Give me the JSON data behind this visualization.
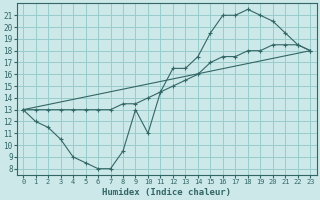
{
  "xlabel": "Humidex (Indice chaleur)",
  "bg_color": "#cce8e8",
  "grid_color": "#99cccc",
  "line_color": "#336666",
  "xlim": [
    -0.5,
    23.5
  ],
  "ylim": [
    7.5,
    22.0
  ],
  "xticks": [
    0,
    1,
    2,
    3,
    4,
    5,
    6,
    7,
    8,
    9,
    10,
    11,
    12,
    13,
    14,
    15,
    16,
    17,
    18,
    19,
    20,
    21,
    22,
    23
  ],
  "yticks": [
    8,
    9,
    10,
    11,
    12,
    13,
    14,
    15,
    16,
    17,
    18,
    19,
    20,
    21
  ],
  "curve1_x": [
    0,
    1,
    2,
    3,
    4,
    5,
    6,
    7,
    8,
    9,
    10,
    11,
    12,
    13,
    14,
    15,
    16,
    17,
    18,
    19,
    20,
    21,
    22,
    23
  ],
  "curve1_y": [
    13,
    12,
    11.5,
    10.5,
    9,
    8.5,
    8,
    8,
    9.5,
    13,
    11,
    14.5,
    16.5,
    16.5,
    17.5,
    19.5,
    21,
    21,
    21.5,
    21,
    20.5,
    19.5,
    18.5,
    18
  ],
  "curve2_x": [
    0,
    1,
    2,
    3,
    4,
    5,
    6,
    7,
    8,
    9,
    10,
    11,
    12,
    13,
    14,
    15,
    16,
    17,
    18,
    19,
    20,
    21,
    22,
    23
  ],
  "curve2_y": [
    13,
    13,
    13,
    13,
    13,
    13,
    13,
    13,
    13.5,
    13.5,
    14,
    14.5,
    15,
    15.5,
    16,
    17,
    17.5,
    17.5,
    18,
    18,
    18.5,
    18.5,
    18.5,
    18
  ],
  "line_x": [
    0,
    23
  ],
  "line_y": [
    13,
    18
  ]
}
